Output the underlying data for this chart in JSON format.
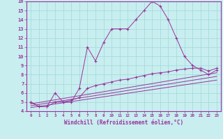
{
  "xlabel": "Windchill (Refroidissement éolien,°C)",
  "background_color": "#c8eef0",
  "line_color": "#993399",
  "grid_color": "#a0d8d8",
  "xlim": [
    -0.5,
    23.5
  ],
  "ylim": [
    4,
    16
  ],
  "line1_x": [
    0,
    1,
    2,
    3,
    4,
    5,
    6,
    7,
    8,
    9,
    10,
    11,
    12,
    13,
    14,
    15,
    16,
    17,
    18,
    19,
    20,
    21,
    22,
    23
  ],
  "line1_y": [
    5.0,
    4.5,
    4.5,
    6.0,
    5.0,
    5.0,
    6.5,
    11.0,
    9.5,
    11.5,
    13.0,
    13.0,
    13.0,
    14.0,
    15.0,
    16.0,
    15.5,
    14.0,
    12.0,
    10.0,
    9.0,
    8.5,
    8.0,
    8.5
  ],
  "line2_x": [
    0,
    1,
    2,
    3,
    4,
    5,
    6,
    7,
    8,
    9,
    10,
    11,
    12,
    13,
    14,
    15,
    16,
    17,
    18,
    19,
    20,
    21,
    22,
    23
  ],
  "line2_y": [
    5.0,
    4.5,
    4.5,
    5.0,
    5.0,
    5.2,
    5.5,
    6.5,
    6.8,
    7.0,
    7.2,
    7.4,
    7.5,
    7.7,
    7.9,
    8.1,
    8.2,
    8.3,
    8.5,
    8.6,
    8.7,
    8.7,
    8.4,
    8.7
  ],
  "line3_x": [
    0,
    23
  ],
  "line3_y": [
    4.8,
    8.2
  ],
  "line4_x": [
    0,
    23
  ],
  "line4_y": [
    4.6,
    7.8
  ],
  "line5_x": [
    0,
    23
  ],
  "line5_y": [
    4.4,
    7.4
  ],
  "xticks": [
    0,
    1,
    2,
    3,
    4,
    5,
    6,
    7,
    8,
    9,
    10,
    11,
    12,
    13,
    14,
    15,
    16,
    17,
    18,
    19,
    20,
    21,
    22,
    23
  ],
  "yticks": [
    4,
    5,
    6,
    7,
    8,
    9,
    10,
    11,
    12,
    13,
    14,
    15,
    16
  ]
}
